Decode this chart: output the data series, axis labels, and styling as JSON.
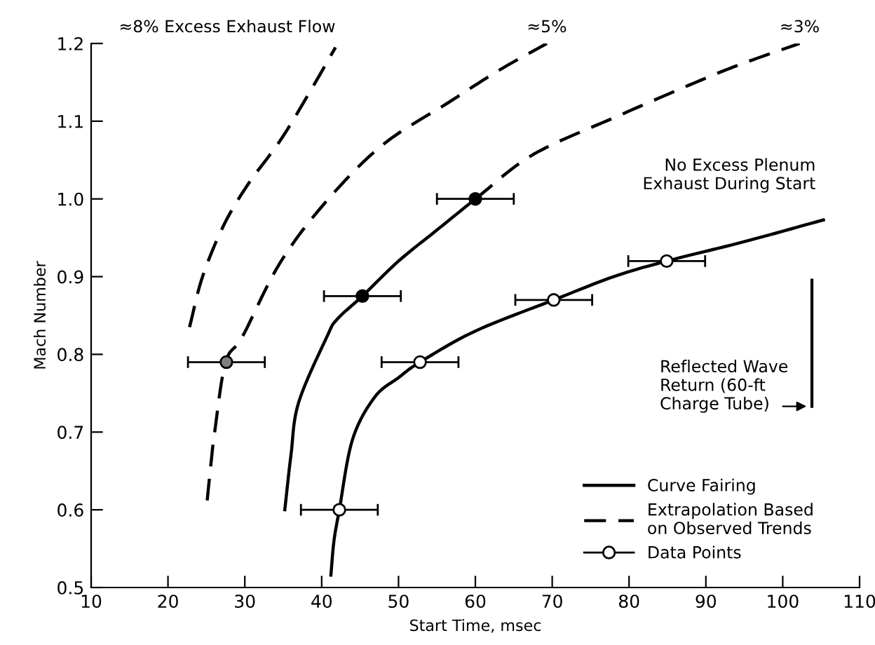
{
  "chart_data": {
    "type": "line",
    "xlabel": "Start Time, msec",
    "ylabel": "Mach Number",
    "xlim": [
      10,
      110
    ],
    "ylim": [
      0.5,
      1.2
    ],
    "xticks": [
      10,
      20,
      30,
      40,
      50,
      60,
      70,
      80,
      90,
      100,
      110
    ],
    "yticks": [
      0.5,
      0.6,
      0.7,
      0.8,
      0.9,
      {
        "value": 1,
        "label": "1.0"
      },
      1.1,
      1.2
    ],
    "grid": false,
    "legend": "bottom right",
    "series": [
      {
        "line_style": "dashed",
        "color": "#000000",
        "x": [
          22.8,
          24.5,
          27.3,
          30.5,
          34.6,
          38.3,
          41.8
        ],
        "values": [
          0.835,
          0.9,
          0.967,
          1.02,
          1.075,
          1.135,
          1.195
        ]
      },
      {
        "line_style": "dashed",
        "color": "#000000",
        "x": [
          25.1,
          25.6,
          26.1,
          27.5,
          29.7,
          34.6,
          40.7,
          48,
          56.5,
          63,
          69.3
        ],
        "values": [
          0.612,
          0.66,
          0.702,
          0.79,
          0.823,
          0.918,
          0.998,
          1.07,
          1.124,
          1.165,
          1.2
        ]
      },
      {
        "line_style": "solid",
        "color": "#000000",
        "name": "Curve Fairing",
        "x": [
          35.2,
          36,
          37,
          40.7,
          42,
          45.3,
          50,
          55,
          60
        ],
        "values": [
          0.6,
          0.67,
          0.738,
          0.823,
          0.845,
          0.875,
          0.92,
          0.96,
          1.0
        ]
      },
      {
        "line_style": "dashed",
        "color": "#000000",
        "name": "Extrapolation Based\non Observed Trends",
        "x": [
          60,
          67.5,
          78.4,
          89.4,
          95,
          102.2
        ],
        "values": [
          1.0,
          1.057,
          1.106,
          1.153,
          1.175,
          1.2
        ]
      },
      {
        "line_style": "solid",
        "color": "#000000",
        "x": [
          41.2,
          41.6,
          42.3,
          44,
          46.9,
          50,
          52.8,
          60,
          70.2,
          78,
          84.9,
          95,
          105.3
        ],
        "values": [
          0.516,
          0.56,
          0.6,
          0.69,
          0.745,
          0.77,
          0.79,
          0.83,
          0.87,
          0.9,
          0.92,
          0.945,
          0.973
        ]
      },
      {
        "type": "scatter",
        "marker": "circle",
        "color": "#ffffff",
        "name": "Data Points",
        "x": [
          42.3,
          52.8,
          70.2,
          84.9
        ],
        "values": [
          0.6,
          0.79,
          0.87,
          0.92
        ],
        "xerrors": [
          5,
          5,
          5,
          5
        ]
      },
      {
        "type": "scatter",
        "marker": "circle",
        "color": "#000000",
        "x": [
          45.3,
          60
        ],
        "values": [
          0.875,
          1.0
        ],
        "xerrors": [
          5,
          5
        ]
      },
      {
        "type": "scatter",
        "marker": "circle",
        "color": "#808080",
        "x": [
          27.6
        ],
        "values": [
          0.79
        ],
        "xerrors": [
          5
        ]
      }
    ],
    "annotations": [
      {
        "text": "≈8% Excess Exhaust Flow",
        "x": 41.8,
        "y": 1.2
      },
      {
        "text": "≈5%",
        "x": 69.3,
        "y": 1.2
      },
      {
        "text": "≈3%",
        "x": 102.2,
        "y": 1.2
      },
      {
        "text": "No Excess Plenum\nExhaust During Start",
        "x": 105.3,
        "y": 0.973
      },
      "Reflected Wave\nReturn (60-ft\nCharge Tube)"
    ]
  }
}
